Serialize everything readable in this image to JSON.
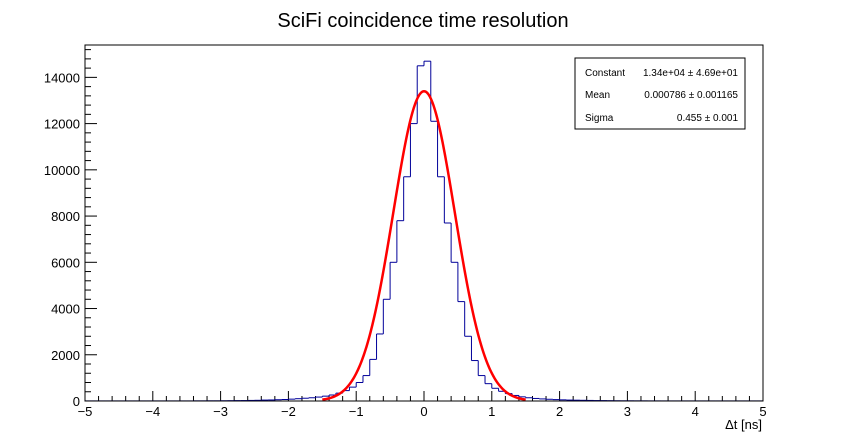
{
  "chart_data": {
    "type": "histogram",
    "title": "SciFi coincidence time resolution",
    "xlabel": "Δt [ns]",
    "ylabel": "",
    "xlim": [
      -5,
      5
    ],
    "ylim": [
      0,
      15400
    ],
    "x_major_ticks": [
      -5,
      -4,
      -3,
      -2,
      -1,
      0,
      1,
      2,
      3,
      4,
      5
    ],
    "x_tick_labels": [
      "−5",
      "−4",
      "−3",
      "−2",
      "−1",
      "0",
      "1",
      "2",
      "3",
      "4",
      "5"
    ],
    "y_major_ticks": [
      0,
      2000,
      4000,
      6000,
      8000,
      10000,
      12000,
      14000
    ],
    "y_tick_labels": [
      "0",
      "2000",
      "4000",
      "6000",
      "8000",
      "10000",
      "12000",
      "14000"
    ],
    "bin_width": 0.1,
    "hist_color": "#000099",
    "fit_color": "#ff0000",
    "series": [
      {
        "name": "histogram",
        "bin_lows": [
          -5.0,
          -4.9,
          -4.8,
          -4.7,
          -4.6,
          -4.5,
          -4.4,
          -4.3,
          -4.2,
          -4.1,
          -4.0,
          -3.9,
          -3.8,
          -3.7,
          -3.6,
          -3.5,
          -3.4,
          -3.3,
          -3.2,
          -3.1,
          -3.0,
          -2.9,
          -2.8,
          -2.7,
          -2.6,
          -2.5,
          -2.4,
          -2.3,
          -2.2,
          -2.1,
          -2.0,
          -1.9,
          -1.8,
          -1.7,
          -1.6,
          -1.5,
          -1.4,
          -1.3,
          -1.2,
          -1.1,
          -1.0,
          -0.9,
          -0.8,
          -0.7,
          -0.6,
          -0.5,
          -0.4,
          -0.3,
          -0.2,
          -0.1,
          0.0,
          0.1,
          0.2,
          0.3,
          0.4,
          0.5,
          0.6,
          0.7,
          0.8,
          0.9,
          1.0,
          1.1,
          1.2,
          1.3,
          1.4,
          1.5,
          1.6,
          1.7,
          1.8,
          1.9,
          2.0,
          2.1,
          2.2,
          2.3,
          2.4,
          2.5,
          2.6,
          2.7,
          2.8,
          2.9,
          3.0,
          3.1,
          3.2,
          3.3,
          3.4,
          3.5,
          3.6,
          3.7,
          3.8,
          3.9,
          4.0,
          4.1,
          4.2,
          4.3,
          4.4,
          4.5,
          4.6,
          4.7,
          4.8,
          4.9
        ],
        "values": [
          5,
          5,
          5,
          5,
          5,
          5,
          5,
          5,
          5,
          5,
          5,
          5,
          5,
          5,
          5,
          5,
          8,
          8,
          10,
          10,
          12,
          15,
          18,
          20,
          25,
          30,
          40,
          45,
          55,
          65,
          80,
          100,
          120,
          140,
          170,
          210,
          260,
          340,
          450,
          600,
          800,
          1100,
          1800,
          2900,
          4400,
          6000,
          7800,
          9700,
          12000,
          14500,
          14700,
          12100,
          9700,
          7700,
          6000,
          4300,
          2800,
          1750,
          1100,
          750,
          550,
          420,
          320,
          240,
          180,
          140,
          110,
          90,
          75,
          60,
          50,
          40,
          35,
          30,
          25,
          20,
          18,
          15,
          12,
          10,
          10,
          8,
          8,
          6,
          6,
          5,
          5,
          5,
          5,
          5,
          5,
          5,
          5,
          5,
          5,
          5,
          5,
          5,
          5,
          5
        ]
      },
      {
        "name": "gaussian fit",
        "constant": 13400,
        "mean": 0.000786,
        "sigma": 0.455,
        "range": [
          -1.5,
          1.5
        ]
      }
    ],
    "stats_box": {
      "rows": [
        {
          "label": "Constant",
          "value": "1.34e+04 ± 4.69e+01"
        },
        {
          "label": "Mean",
          "value": "0.000786 ± 0.001165"
        },
        {
          "label": "Sigma",
          "value": "0.455 ± 0.001"
        }
      ]
    }
  }
}
